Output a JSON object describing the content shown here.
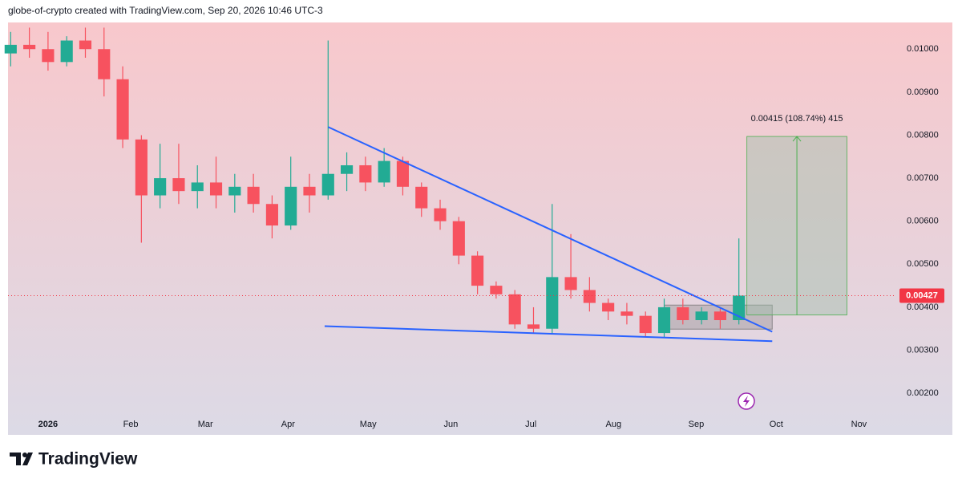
{
  "header": {
    "text": "globe-of-crypto created with TradingView.com, Sep 20, 2026 10:46 UTC-3"
  },
  "footer": {
    "brand": "TradingView"
  },
  "chart_data": {
    "type": "candlestick",
    "up_color": "#22ab94",
    "down_color": "#f7525f",
    "x": [
      -14,
      -7,
      0,
      7,
      14,
      21,
      28,
      35,
      42,
      49,
      56,
      63,
      70,
      77,
      84,
      91,
      98,
      105,
      112,
      119,
      126,
      133,
      140,
      147,
      154,
      161,
      168,
      175,
      182,
      189,
      196,
      203,
      210,
      217,
      224,
      231,
      238,
      245,
      252,
      259
    ],
    "open": [
      0.0099,
      0.0101,
      0.01,
      0.0097,
      0.0102,
      0.01,
      0.0093,
      0.0079,
      0.0066,
      0.007,
      0.0067,
      0.0069,
      0.0066,
      0.0068,
      0.0064,
      0.0059,
      0.0068,
      0.0066,
      0.0071,
      0.0073,
      0.0069,
      0.0074,
      0.0068,
      0.0063,
      0.006,
      0.0052,
      0.0045,
      0.0043,
      0.0036,
      0.0035,
      0.0047,
      0.0044,
      0.0041,
      0.0039,
      0.0038,
      0.0034,
      0.004,
      0.0037,
      0.0039,
      0.0037
    ],
    "high": [
      0.0104,
      0.0105,
      0.0104,
      0.0103,
      0.0105,
      0.0105,
      0.0096,
      0.008,
      0.0078,
      0.0078,
      0.0073,
      0.0075,
      0.0071,
      0.0071,
      0.0066,
      0.0075,
      0.0071,
      0.0102,
      0.0076,
      0.0075,
      0.0077,
      0.0075,
      0.0069,
      0.0065,
      0.0061,
      0.0053,
      0.0046,
      0.0044,
      0.004,
      0.0064,
      0.0057,
      0.0047,
      0.0042,
      0.0041,
      0.0039,
      0.0042,
      0.0042,
      0.004,
      0.004,
      0.0056
    ],
    "low": [
      0.0096,
      0.0098,
      0.0095,
      0.0096,
      0.0098,
      0.0089,
      0.0077,
      0.0055,
      0.0063,
      0.0064,
      0.0063,
      0.0063,
      0.0062,
      0.0062,
      0.0056,
      0.0058,
      0.0062,
      0.0065,
      0.0067,
      0.0067,
      0.0068,
      0.0066,
      0.0061,
      0.0058,
      0.005,
      0.0043,
      0.0042,
      0.0035,
      0.0034,
      0.0034,
      0.0042,
      0.0039,
      0.0037,
      0.0036,
      0.0033,
      0.0033,
      0.0036,
      0.0036,
      0.0035,
      0.0036
    ],
    "close": [
      0.0101,
      0.01,
      0.0097,
      0.0102,
      0.01,
      0.0093,
      0.0079,
      0.0066,
      0.007,
      0.0067,
      0.0069,
      0.0066,
      0.0068,
      0.0064,
      0.0059,
      0.0068,
      0.0066,
      0.0071,
      0.0073,
      0.0069,
      0.0074,
      0.0068,
      0.0063,
      0.006,
      0.0052,
      0.0045,
      0.0043,
      0.0036,
      0.0035,
      0.0047,
      0.0044,
      0.0041,
      0.0039,
      0.0038,
      0.0034,
      0.004,
      0.0037,
      0.0039,
      0.0037,
      0.00427
    ],
    "xlim": [
      -15,
      318
    ],
    "xticks": [
      {
        "value": 0,
        "label": "2026"
      },
      {
        "value": 31,
        "label": "Feb"
      },
      {
        "value": 59,
        "label": "Mar"
      },
      {
        "value": 90,
        "label": "Apr"
      },
      {
        "value": 120,
        "label": "May"
      },
      {
        "value": 151,
        "label": "Jun"
      },
      {
        "value": 181,
        "label": "Jul"
      },
      {
        "value": 212,
        "label": "Aug"
      },
      {
        "value": 243,
        "label": "Sep"
      },
      {
        "value": 273,
        "label": "Oct"
      },
      {
        "value": 304,
        "label": "Nov"
      }
    ],
    "ylim": [
      0.00107,
      0.01062
    ],
    "yticks": [
      {
        "value": 0.002,
        "label": "0.00200"
      },
      {
        "value": 0.003,
        "label": "0.00300"
      },
      {
        "value": 0.004,
        "label": "0.00400"
      },
      {
        "value": 0.005,
        "label": "0.00500"
      },
      {
        "value": 0.006,
        "label": "0.00600"
      },
      {
        "value": 0.007,
        "label": "0.00700"
      },
      {
        "value": 0.008,
        "label": "0.00800"
      },
      {
        "value": 0.009,
        "label": "0.00900"
      },
      {
        "value": 0.01,
        "label": "0.01000"
      }
    ],
    "grid": false,
    "trendlines": [
      {
        "color": "#2962ff",
        "x": [
          105,
          271.5
        ],
        "y": [
          0.00819,
          0.00343
        ]
      },
      {
        "color": "#2962ff",
        "x": [
          103.7,
          271.5
        ],
        "y": [
          0.00356,
          0.00321
        ]
      }
    ],
    "range_box": {
      "x": [
        231,
        271.5
      ],
      "y": [
        0.00405,
        0.00349
      ]
    },
    "measure": {
      "x": [
        262,
        299.5
      ],
      "y": [
        0.00382,
        0.00797
      ],
      "label": "0.00415 (108.74%) 415",
      "color": "#4caf50"
    },
    "last_price_color": "#f23645"
  }
}
